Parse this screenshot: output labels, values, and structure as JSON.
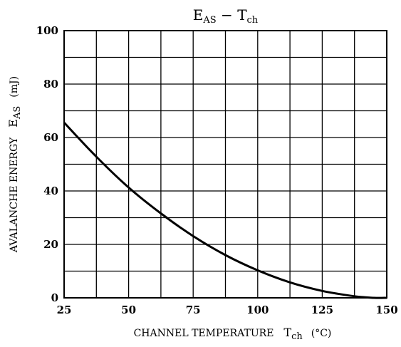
{
  "chart_data": {
    "type": "line",
    "title": {
      "main": "E",
      "sub1": "AS",
      "separator": " − ",
      "main2": "T",
      "sub2": "ch"
    },
    "xlabel": {
      "text": "CHANNEL TEMPERATURE",
      "symbol": "T",
      "symbol_sub": "ch",
      "unit": "(°C)"
    },
    "ylabel": {
      "text": "AVALANCHE ENERGY",
      "symbol": "E",
      "symbol_sub": "AS",
      "unit": "(mJ)"
    },
    "xlim": [
      25,
      150
    ],
    "ylim": [
      0,
      100
    ],
    "x_ticks": [
      "25",
      "50",
      "75",
      "100",
      "125",
      "150"
    ],
    "y_ticks": [
      "0",
      "20",
      "40",
      "60",
      "80",
      "100"
    ],
    "x_grid_step": 12.5,
    "y_grid_step": 10,
    "grid": true,
    "series": [
      {
        "color": "#000000",
        "x": [
          25,
          37.5,
          50,
          62.5,
          75,
          87.5,
          100,
          112.5,
          125,
          137.5,
          145,
          150
        ],
        "y": [
          65.6,
          52.8,
          41.3,
          31.6,
          23.1,
          16.0,
          10.3,
          5.8,
          2.6,
          0.6,
          0,
          0
        ]
      }
    ]
  }
}
